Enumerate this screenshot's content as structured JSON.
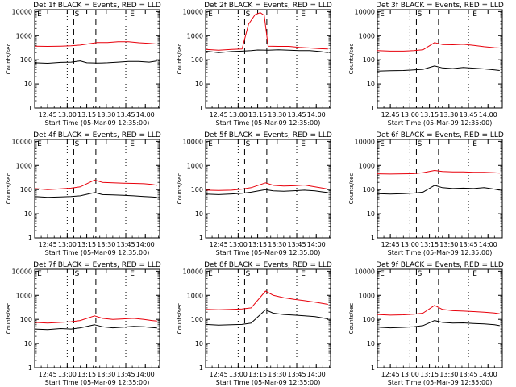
{
  "figure": {
    "y_axis_label": "Counts/sec",
    "x_axis_label": "Start Time (05-Mar-09 12:35:00)",
    "x_tick_labels": [
      "12:45",
      "13:00",
      "13:15",
      "13:30",
      "13:45",
      "14:00"
    ],
    "y_tick_labels": [
      "1",
      "10",
      "100",
      "1000",
      "10000"
    ],
    "marker_labels": [
      "E",
      "S",
      "E"
    ]
  },
  "chart_data": [
    {
      "type": "line",
      "title": "Det 1f BLACK = Events, RED = LLD",
      "xlabel": "Start Time (05-Mar-09 12:35:00)",
      "ylabel": "Counts/sec",
      "ylog": true,
      "ylim": [
        1,
        12000
      ],
      "x_unit": "minutes after 12:35",
      "series": [
        {
          "color": "#000000",
          "points": [
            [
              0,
              75
            ],
            [
              10,
              72
            ],
            [
              20,
              78
            ],
            [
              28,
              80
            ],
            [
              35,
              90
            ],
            [
              40,
              75
            ],
            [
              48,
              73
            ],
            [
              56,
              75
            ],
            [
              64,
              80
            ],
            [
              72,
              85
            ],
            [
              80,
              85
            ],
            [
              88,
              80
            ],
            [
              94,
              90
            ]
          ]
        },
        {
          "color": "#e8000b",
          "points": [
            [
              0,
              370
            ],
            [
              10,
              360
            ],
            [
              20,
              370
            ],
            [
              28,
              380
            ],
            [
              35,
              410
            ],
            [
              48,
              520
            ],
            [
              56,
              520
            ],
            [
              64,
              560
            ],
            [
              72,
              560
            ],
            [
              80,
              510
            ],
            [
              88,
              480
            ],
            [
              94,
              450
            ]
          ]
        }
      ]
    },
    {
      "type": "line",
      "title": "Det 2f BLACK = Events, RED = LLD",
      "xlabel": "Start Time (05-Mar-09 12:35:00)",
      "ylabel": "Counts/sec",
      "ylog": true,
      "ylim": [
        1,
        12000
      ],
      "x_unit": "minutes after 12:35",
      "series": [
        {
          "color": "#000000",
          "points": [
            [
              0,
              230
            ],
            [
              10,
              200
            ],
            [
              20,
              220
            ],
            [
              28,
              230
            ],
            [
              35,
              240
            ],
            [
              40,
              255
            ],
            [
              48,
              250
            ],
            [
              56,
              260
            ],
            [
              64,
              250
            ],
            [
              72,
              240
            ],
            [
              80,
              240
            ],
            [
              88,
              220
            ],
            [
              94,
              200
            ]
          ]
        },
        {
          "color": "#e8000b",
          "points": [
            [
              0,
              270
            ],
            [
              10,
              250
            ],
            [
              20,
              270
            ],
            [
              28,
              280
            ],
            [
              33,
              3000
            ],
            [
              38,
              7500
            ],
            [
              42,
              9000
            ],
            [
              45,
              7000
            ],
            [
              48,
              370
            ],
            [
              56,
              360
            ],
            [
              64,
              360
            ],
            [
              72,
              330
            ],
            [
              80,
              310
            ],
            [
              88,
              290
            ],
            [
              94,
              280
            ]
          ]
        }
      ]
    },
    {
      "type": "line",
      "title": "Det 3f BLACK = Events, RED = LLD",
      "xlabel": "Start Time (05-Mar-09 12:35:00)",
      "ylabel": "Counts/sec",
      "ylog": true,
      "ylim": [
        1,
        12000
      ],
      "x_unit": "minutes after 12:35",
      "series": [
        {
          "color": "#000000",
          "points": [
            [
              0,
              34
            ],
            [
              10,
              35
            ],
            [
              20,
              36
            ],
            [
              28,
              38
            ],
            [
              35,
              40
            ],
            [
              44,
              55
            ],
            [
              50,
              46
            ],
            [
              58,
              43
            ],
            [
              66,
              48
            ],
            [
              74,
              45
            ],
            [
              82,
              42
            ],
            [
              90,
              38
            ],
            [
              94,
              36
            ]
          ]
        },
        {
          "color": "#e8000b",
          "points": [
            [
              0,
              240
            ],
            [
              10,
              230
            ],
            [
              20,
              230
            ],
            [
              28,
              240
            ],
            [
              35,
              260
            ],
            [
              44,
              520
            ],
            [
              50,
              430
            ],
            [
              58,
              420
            ],
            [
              66,
              440
            ],
            [
              74,
              400
            ],
            [
              82,
              350
            ],
            [
              90,
              320
            ],
            [
              94,
              310
            ]
          ]
        }
      ]
    },
    {
      "type": "line",
      "title": "Det 4f BLACK = Events, RED = LLD",
      "xlabel": "Start Time (05-Mar-09 12:35:00)",
      "ylabel": "Counts/sec",
      "ylog": true,
      "ylim": [
        1,
        12000
      ],
      "x_unit": "minutes after 12:35",
      "series": [
        {
          "color": "#000000",
          "points": [
            [
              0,
              52
            ],
            [
              10,
              48
            ],
            [
              20,
              50
            ],
            [
              28,
              52
            ],
            [
              35,
              55
            ],
            [
              46,
              75
            ],
            [
              52,
              62
            ],
            [
              60,
              60
            ],
            [
              68,
              58
            ],
            [
              76,
              55
            ],
            [
              84,
              52
            ],
            [
              90,
              50
            ],
            [
              94,
              48
            ]
          ]
        },
        {
          "color": "#e8000b",
          "points": [
            [
              0,
              110
            ],
            [
              10,
              100
            ],
            [
              20,
              108
            ],
            [
              28,
              115
            ],
            [
              35,
              130
            ],
            [
              46,
              250
            ],
            [
              52,
              200
            ],
            [
              60,
              190
            ],
            [
              68,
              185
            ],
            [
              76,
              180
            ],
            [
              84,
              175
            ],
            [
              90,
              165
            ],
            [
              94,
              150
            ]
          ]
        }
      ]
    },
    {
      "type": "line",
      "title": "Det 5f BLACK = Events, RED = LLD",
      "xlabel": "Start Time (05-Mar-09 12:35:00)",
      "ylabel": "Counts/sec",
      "ylog": true,
      "ylim": [
        1,
        12000
      ],
      "x_unit": "minutes after 12:35",
      "series": [
        {
          "color": "#000000",
          "points": [
            [
              0,
              65
            ],
            [
              10,
              62
            ],
            [
              20,
              66
            ],
            [
              28,
              70
            ],
            [
              35,
              78
            ],
            [
              46,
              100
            ],
            [
              52,
              88
            ],
            [
              60,
              85
            ],
            [
              68,
              90
            ],
            [
              76,
              95
            ],
            [
              84,
              88
            ],
            [
              90,
              80
            ],
            [
              94,
              75
            ]
          ]
        },
        {
          "color": "#e8000b",
          "points": [
            [
              0,
              95
            ],
            [
              10,
              92
            ],
            [
              20,
              95
            ],
            [
              28,
              105
            ],
            [
              35,
              120
            ],
            [
              46,
              190
            ],
            [
              52,
              150
            ],
            [
              60,
              140
            ],
            [
              68,
              145
            ],
            [
              76,
              155
            ],
            [
              84,
              130
            ],
            [
              90,
              115
            ],
            [
              94,
              105
            ]
          ]
        }
      ]
    },
    {
      "type": "line",
      "title": "Det 6f BLACK = Events, RED = LLD",
      "xlabel": "Start Time (05-Mar-09 12:35:00)",
      "ylabel": "Counts/sec",
      "ylog": true,
      "ylim": [
        1,
        12000
      ],
      "x_unit": "minutes after 12:35",
      "series": [
        {
          "color": "#000000",
          "points": [
            [
              0,
              68
            ],
            [
              10,
              65
            ],
            [
              20,
              68
            ],
            [
              28,
              72
            ],
            [
              35,
              78
            ],
            [
              44,
              150
            ],
            [
              50,
              120
            ],
            [
              58,
              110
            ],
            [
              66,
              115
            ],
            [
              74,
              110
            ],
            [
              82,
              120
            ],
            [
              90,
              105
            ],
            [
              94,
              95
            ]
          ]
        },
        {
          "color": "#e8000b",
          "points": [
            [
              0,
              450
            ],
            [
              10,
              440
            ],
            [
              20,
              450
            ],
            [
              28,
              460
            ],
            [
              35,
              500
            ],
            [
              44,
              620
            ],
            [
              50,
              560
            ],
            [
              58,
              540
            ],
            [
              66,
              540
            ],
            [
              74,
              520
            ],
            [
              82,
              520
            ],
            [
              90,
              500
            ],
            [
              94,
              480
            ]
          ]
        }
      ]
    },
    {
      "type": "line",
      "title": "Det 7f BLACK = Events, RED = LLD",
      "xlabel": "Start Time (05-Mar-09 12:35:00)",
      "ylabel": "Counts/sec",
      "ylog": true,
      "ylim": [
        1,
        12000
      ],
      "x_unit": "minutes after 12:35",
      "series": [
        {
          "color": "#000000",
          "points": [
            [
              0,
              40
            ],
            [
              10,
              38
            ],
            [
              20,
              42
            ],
            [
              28,
              40
            ],
            [
              35,
              45
            ],
            [
              46,
              60
            ],
            [
              52,
              50
            ],
            [
              60,
              45
            ],
            [
              68,
              48
            ],
            [
              76,
              52
            ],
            [
              84,
              50
            ],
            [
              90,
              46
            ],
            [
              94,
              44
            ]
          ]
        },
        {
          "color": "#e8000b",
          "points": [
            [
              0,
              75
            ],
            [
              10,
              70
            ],
            [
              20,
              75
            ],
            [
              28,
              80
            ],
            [
              35,
              90
            ],
            [
              46,
              140
            ],
            [
              52,
              110
            ],
            [
              60,
              100
            ],
            [
              68,
              105
            ],
            [
              76,
              110
            ],
            [
              84,
              100
            ],
            [
              90,
              90
            ],
            [
              94,
              85
            ]
          ]
        }
      ]
    },
    {
      "type": "line",
      "title": "Det 8f BLACK = Events, RED = LLD",
      "xlabel": "Start Time (05-Mar-09 12:35:00)",
      "ylabel": "Counts/sec",
      "ylog": true,
      "ylim": [
        1,
        12000
      ],
      "x_unit": "minutes after 12:35",
      "series": [
        {
          "color": "#000000",
          "points": [
            [
              0,
              62
            ],
            [
              10,
              58
            ],
            [
              20,
              60
            ],
            [
              28,
              62
            ],
            [
              35,
              70
            ],
            [
              46,
              250
            ],
            [
              52,
              180
            ],
            [
              60,
              160
            ],
            [
              68,
              150
            ],
            [
              76,
              140
            ],
            [
              84,
              130
            ],
            [
              90,
              115
            ],
            [
              94,
              105
            ]
          ]
        },
        {
          "color": "#e8000b",
          "points": [
            [
              0,
              260
            ],
            [
              10,
              250
            ],
            [
              20,
              260
            ],
            [
              28,
              270
            ],
            [
              35,
              300
            ],
            [
              46,
              1500
            ],
            [
              52,
              1000
            ],
            [
              60,
              800
            ],
            [
              68,
              680
            ],
            [
              76,
              600
            ],
            [
              84,
              520
            ],
            [
              90,
              460
            ],
            [
              94,
              420
            ]
          ]
        }
      ]
    },
    {
      "type": "line",
      "title": "Det 9f BLACK = Events, RED = LLD",
      "xlabel": "Start Time (05-Mar-09 12:35:00)",
      "ylabel": "Counts/sec",
      "ylog": true,
      "ylim": [
        1,
        12000
      ],
      "x_unit": "minutes after 12:35",
      "series": [
        {
          "color": "#000000",
          "points": [
            [
              0,
              48
            ],
            [
              10,
              45
            ],
            [
              20,
              47
            ],
            [
              28,
              50
            ],
            [
              35,
              55
            ],
            [
              44,
              90
            ],
            [
              50,
              75
            ],
            [
              58,
              70
            ],
            [
              66,
              72
            ],
            [
              74,
              68
            ],
            [
              82,
              65
            ],
            [
              90,
              60
            ],
            [
              94,
              55
            ]
          ]
        },
        {
          "color": "#e8000b",
          "points": [
            [
              0,
              160
            ],
            [
              10,
              150
            ],
            [
              20,
              155
            ],
            [
              28,
              165
            ],
            [
              35,
              180
            ],
            [
              44,
              380
            ],
            [
              50,
              260
            ],
            [
              58,
              230
            ],
            [
              66,
              220
            ],
            [
              74,
              210
            ],
            [
              82,
              200
            ],
            [
              90,
              185
            ],
            [
              94,
              170
            ]
          ]
        }
      ]
    }
  ]
}
